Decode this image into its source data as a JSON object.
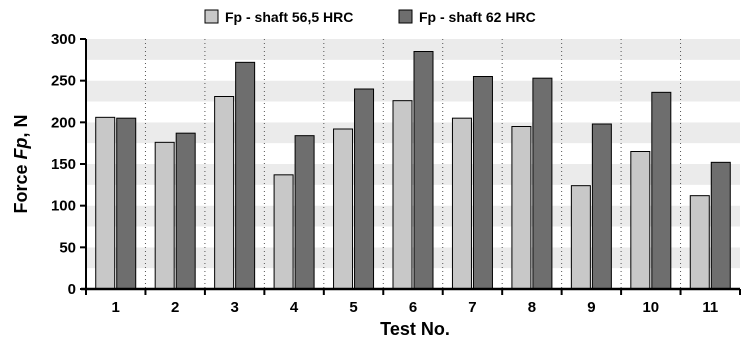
{
  "chart_data": {
    "type": "bar",
    "categories": [
      "1",
      "2",
      "3",
      "4",
      "5",
      "6",
      "7",
      "8",
      "9",
      "10",
      "11"
    ],
    "series": [
      {
        "name": "Fp - shaft 56,5 HRC",
        "values": [
          206,
          176,
          231,
          137,
          192,
          226,
          205,
          195,
          124,
          165,
          112
        ],
        "color": "#c8c8c8"
      },
      {
        "name": "Fp - shaft 62 HRC",
        "values": [
          205,
          187,
          272,
          184,
          240,
          285,
          255,
          253,
          198,
          236,
          152
        ],
        "color": "#6e6e6e"
      }
    ],
    "xlabel": "Test No.",
    "ylabel_prefix": "Force ",
    "ylabel_italic": "Fp",
    "ylabel_suffix": ", N",
    "ylim": [
      0,
      300
    ],
    "yticks": [
      0,
      50,
      100,
      150,
      200,
      250,
      300
    ],
    "grid": "alternating horizontal bands every 25 N, dotted vertical separators between tests",
    "legend_position": "top-center"
  }
}
